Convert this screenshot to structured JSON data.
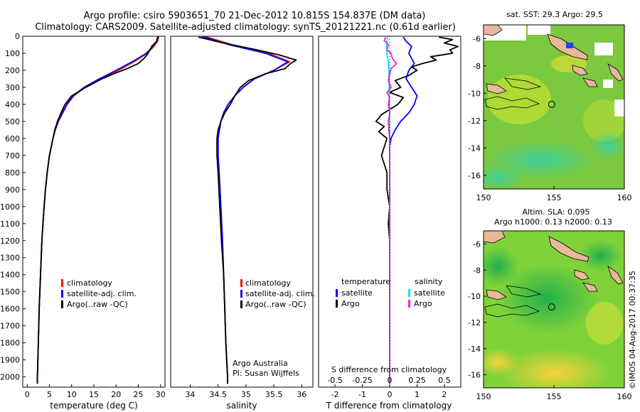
{
  "header": {
    "line1": "Argo profile: csiro 5903651_70 21-Dec-2012 10.815S 154.837E (DM data)",
    "line2": "Climatology: CARS2009. Satellite-adjusted climatology: synTS_20121221.nc (0.61d earlier)"
  },
  "colors": {
    "climatology": "#ff0000",
    "satellite": "#0000ff",
    "argo": "#000000",
    "s_satellite": "#00e5ee",
    "s_argo": "#ee22dd"
  },
  "depth_ticks": [
    0,
    100,
    200,
    300,
    400,
    500,
    600,
    700,
    800,
    900,
    1000,
    1100,
    1200,
    1300,
    1400,
    1500,
    1600,
    1700,
    1800,
    1900,
    2000
  ],
  "chart_data": [
    {
      "type": "line",
      "id": "temperature",
      "xlabel": "temperature (deg C)",
      "ylabel": "",
      "xlim": [
        -1,
        31
      ],
      "ylim": [
        2060,
        0
      ],
      "xticks": [
        0,
        5,
        10,
        15,
        20,
        25,
        30
      ],
      "legend": [
        "climatology",
        "satellite-adj. clim.",
        "Argo(..raw -QC)"
      ],
      "series": [
        {
          "name": "climatology",
          "color": "#ff0000",
          "depth": [
            0,
            30,
            60,
            100,
            150,
            200,
            250,
            300,
            350,
            400,
            450,
            500,
            550,
            600,
            700,
            800,
            900,
            1000,
            1200,
            1400,
            1600,
            1800,
            2000,
            2040
          ],
          "values": [
            29.6,
            29.3,
            28.5,
            27.0,
            24.0,
            20.5,
            16.5,
            13.0,
            10.5,
            9.0,
            8.0,
            7.0,
            6.3,
            5.8,
            5.0,
            4.5,
            4.1,
            3.8,
            3.3,
            3.0,
            2.7,
            2.5,
            2.3,
            2.3
          ]
        },
        {
          "name": "satellite-adj. clim.",
          "color": "#0000ff",
          "depth": [
            0,
            30,
            60,
            100,
            150,
            200,
            250,
            300,
            350,
            400,
            450,
            500,
            550,
            600,
            700,
            800,
            900,
            1000,
            1200,
            1400,
            1600,
            1800,
            2000,
            2040
          ],
          "values": [
            29.4,
            29.1,
            28.3,
            26.8,
            23.6,
            20.0,
            16.2,
            12.8,
            10.3,
            8.9,
            7.9,
            7.0,
            6.3,
            5.8,
            5.0,
            4.5,
            4.1,
            3.8,
            3.3,
            3.0,
            2.7,
            2.5,
            2.3,
            2.3
          ]
        },
        {
          "name": "Argo(..raw -QC)",
          "color": "#000000",
          "depth": [
            5,
            30,
            60,
            100,
            130,
            160,
            190,
            220,
            250,
            300,
            350,
            400,
            450,
            500,
            550,
            600,
            700,
            800,
            900,
            1000,
            1200,
            1400,
            1600,
            1800,
            2000,
            2040
          ],
          "values": [
            29.5,
            29.1,
            28.0,
            27.2,
            26.3,
            25.0,
            22.5,
            19.5,
            16.8,
            13.2,
            10.0,
            8.5,
            7.6,
            6.8,
            6.2,
            5.8,
            5.0,
            4.5,
            4.1,
            3.8,
            3.3,
            3.0,
            2.7,
            2.5,
            2.3,
            2.3
          ]
        }
      ]
    },
    {
      "type": "line",
      "id": "salinity",
      "xlabel": "salinity",
      "ylabel": "",
      "xlim": [
        33.65,
        36.2
      ],
      "ylim": [
        2060,
        0
      ],
      "xticks": [
        34,
        34.5,
        35,
        35.5,
        36
      ],
      "legend": [
        "climatology",
        "satellite-adj. clim.",
        "Argo(..raw -QC)"
      ],
      "annotation": [
        "Argo Australia",
        "PI: Susan Wijffels"
      ],
      "series": [
        {
          "name": "climatology",
          "color": "#ff0000",
          "depth": [
            0,
            50,
            100,
            150,
            200,
            250,
            300,
            350,
            400,
            450,
            500,
            600,
            700,
            800,
            1000,
            1200,
            1400,
            1600,
            1800,
            2000,
            2040
          ],
          "values": [
            34.25,
            34.75,
            35.4,
            35.78,
            35.5,
            35.15,
            34.95,
            34.8,
            34.68,
            34.6,
            34.55,
            34.5,
            34.5,
            34.52,
            34.55,
            34.58,
            34.6,
            34.62,
            34.64,
            34.67,
            34.67
          ]
        },
        {
          "name": "satellite-adj. clim.",
          "color": "#0000ff",
          "depth": [
            0,
            50,
            100,
            150,
            200,
            250,
            300,
            350,
            400,
            450,
            500,
            600,
            700,
            800,
            1000,
            1200,
            1400,
            1600,
            1800,
            2000,
            2040
          ],
          "values": [
            34.2,
            34.7,
            35.35,
            35.75,
            35.5,
            35.15,
            34.95,
            34.8,
            34.68,
            34.6,
            34.55,
            34.5,
            34.5,
            34.52,
            34.55,
            34.58,
            34.6,
            34.62,
            34.64,
            34.67,
            34.67
          ]
        },
        {
          "name": "Argo(..raw -QC)",
          "color": "#000000",
          "depth": [
            5,
            40,
            80,
            110,
            140,
            160,
            190,
            220,
            260,
            300,
            350,
            400,
            450,
            500,
            550,
            600,
            700,
            800,
            1000,
            1200,
            1400,
            1600,
            1800,
            2000,
            2040
          ],
          "values": [
            34.15,
            34.6,
            35.2,
            35.6,
            35.9,
            35.8,
            35.7,
            35.35,
            35.05,
            34.9,
            34.8,
            34.72,
            34.62,
            34.55,
            34.5,
            34.48,
            34.48,
            34.5,
            34.53,
            34.56,
            34.6,
            34.62,
            34.64,
            34.67,
            34.67
          ]
        }
      ]
    },
    {
      "type": "line",
      "id": "difference",
      "xlabel": "T difference from climatology",
      "xlabel_top": "S difference from climatology",
      "xlim": [
        -2.6,
        2.6
      ],
      "ylim": [
        2060,
        0
      ],
      "xticks": [
        -2,
        -1,
        0,
        1,
        2
      ],
      "s_xticks": [
        -0.5,
        -0.25,
        0,
        0.25,
        0.5
      ],
      "legend_headers": [
        "temperature",
        "salinity"
      ],
      "legend": [
        "satellite",
        "Argo",
        "satellite",
        "Argo"
      ],
      "series": [
        {
          "name": "temperature satellite",
          "color": "#0000ff",
          "depth": [
            5,
            30,
            60,
            100,
            130,
            160,
            200,
            250,
            300,
            350,
            400,
            450,
            500,
            550,
            600,
            650,
            700,
            800,
            1000,
            1200,
            1500,
            2000,
            2040
          ],
          "values": [
            0.5,
            0.6,
            0.8,
            0.7,
            0.8,
            0.9,
            0.7,
            0.6,
            0.8,
            1.0,
            0.9,
            0.7,
            0.4,
            0.2,
            0.05,
            0.0,
            0.0,
            0.0,
            0.0,
            0.0,
            0.0,
            0.0,
            0.0
          ]
        },
        {
          "name": "temperature Argo",
          "color": "#000000",
          "depth": [
            5,
            20,
            40,
            60,
            80,
            100,
            120,
            140,
            160,
            180,
            200,
            230,
            260,
            300,
            330,
            360,
            400,
            430,
            460,
            500,
            530,
            560,
            600,
            650,
            700,
            750,
            800,
            900,
            1000,
            1100,
            1200,
            1400,
            1600,
            1800,
            2000,
            2040
          ],
          "values": [
            1.8,
            2.3,
            2.0,
            2.5,
            2.2,
            2.3,
            1.5,
            1.7,
            1.2,
            0.8,
            1.0,
            0.7,
            0.2,
            0.4,
            0.0,
            0.5,
            0.3,
            0.0,
            -0.3,
            -0.5,
            -0.2,
            -0.4,
            -0.1,
            -0.2,
            -0.3,
            -0.2,
            -0.1,
            -0.1,
            0.0,
            -0.05,
            0.0,
            0.0,
            0.0,
            0.0,
            0.0,
            0.0
          ]
        },
        {
          "name": "salinity satellite",
          "color": "#00e5ee",
          "depth": [
            5,
            30,
            60,
            100,
            150,
            200,
            300,
            400,
            500,
            600,
            700,
            800,
            1000,
            1200,
            1500,
            2000,
            2040
          ],
          "values": [
            -0.08,
            -0.1,
            -0.12,
            -0.1,
            -0.05,
            -0.03,
            -0.02,
            -0.01,
            0.0,
            0.0,
            0.0,
            0.0,
            0.0,
            0.0,
            0.0,
            0.0,
            0.0
          ]
        },
        {
          "name": "salinity Argo",
          "color": "#ee22dd",
          "depth": [
            5,
            25,
            50,
            80,
            100,
            130,
            160,
            190,
            220,
            260,
            300,
            330,
            360,
            400,
            450,
            500,
            550,
            600,
            650,
            700,
            800,
            900,
            1000,
            1200,
            1500,
            2000,
            2040
          ],
          "values": [
            -0.15,
            -0.2,
            -0.05,
            -0.1,
            0.05,
            0.1,
            0.25,
            0.05,
            0.0,
            -0.05,
            0.05,
            -0.1,
            0.0,
            -0.05,
            0.0,
            -0.05,
            -0.03,
            0.0,
            0.0,
            0.0,
            0.0,
            0.0,
            0.0,
            0.0,
            0.0,
            0.0,
            0.0
          ]
        }
      ]
    },
    {
      "type": "heatmap",
      "id": "sst-map",
      "title": "sat. SST: 29.3 Argo: 29.5",
      "xlim": [
        150,
        160
      ],
      "ylim": [
        -17,
        -5
      ],
      "xticks": [
        150,
        155,
        160
      ],
      "yticks": [
        -6,
        -8,
        -10,
        -12,
        -14,
        -16
      ],
      "marker": [
        154.837,
        -10.815
      ]
    },
    {
      "type": "heatmap",
      "id": "sla-map",
      "title": "Altim. SLA: 0.095",
      "subtitle": "Argo h1000: 0.13 h2000: 0.13",
      "xlim": [
        150,
        160
      ],
      "ylim": [
        -17,
        -5
      ],
      "xticks": [
        150,
        155,
        160
      ],
      "yticks": [
        -6,
        -8,
        -10,
        -12,
        -14,
        -16
      ],
      "marker": [
        154.837,
        -10.815
      ]
    }
  ],
  "credit": "©IMOS 04-Aug-2017 00:37:35"
}
